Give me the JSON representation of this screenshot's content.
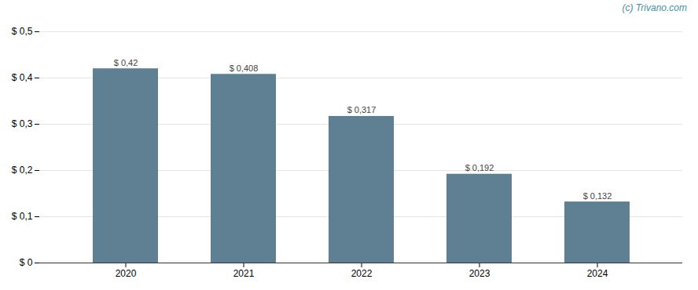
{
  "chart_data": {
    "type": "bar",
    "categories": [
      "2020",
      "2021",
      "2022",
      "2023",
      "2024"
    ],
    "values": [
      0.42,
      0.408,
      0.317,
      0.192,
      0.132
    ],
    "value_labels": [
      "$ 0,42",
      "$ 0,408",
      "$ 0,317",
      "$ 0,192",
      "$ 0,132"
    ],
    "color": "#5f7f93",
    "ylim": [
      0,
      0.5
    ],
    "yticks": [
      {
        "value": 0.0,
        "label": "$ 0"
      },
      {
        "value": 0.1,
        "label": "$ 0,1"
      },
      {
        "value": 0.2,
        "label": "$ 0,2"
      },
      {
        "value": 0.3,
        "label": "$ 0,3"
      },
      {
        "value": 0.4,
        "label": "$ 0,4"
      },
      {
        "value": 0.5,
        "label": "$ 0,5"
      }
    ],
    "grid": true,
    "data_labels": true,
    "annotations": [
      {
        "text": "(c) Trivano.com",
        "color": "#4a90a4"
      }
    ]
  }
}
